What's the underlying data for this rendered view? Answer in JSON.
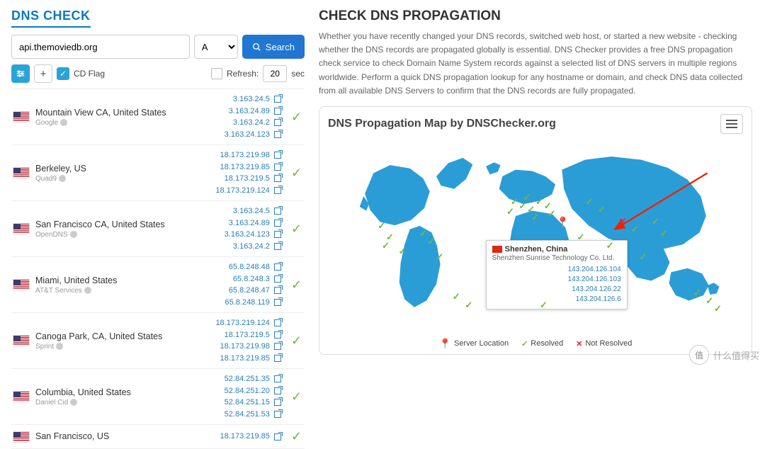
{
  "colors": {
    "accent": "#2176d2",
    "link": "#2a7fb8",
    "ok": "#6fb936",
    "no": "#e23",
    "map": "#2a9dd6"
  },
  "left": {
    "title": "DNS CHECK",
    "host_value": "api.themoviedb.org",
    "record_type": "A",
    "search_label": "Search",
    "cd_flag_label": "CD Flag",
    "refresh_label": "Refresh:",
    "refresh_value": "20",
    "refresh_unit": "sec",
    "servers": [
      {
        "loc": "Mountain View CA, United States",
        "prov": "Google",
        "ips": [
          "3.163.24.5",
          "3.163.24.89",
          "3.163.24.2",
          "3.163.24.123"
        ],
        "ok": true
      },
      {
        "loc": "Berkeley, US",
        "prov": "Quad9",
        "ips": [
          "18.173.219.98",
          "18.173.219.85",
          "18.173.219.5",
          "18.173.219.124"
        ],
        "ok": true
      },
      {
        "loc": "San Francisco CA, United States",
        "prov": "OpenDNS",
        "ips": [
          "3.163.24.5",
          "3.163.24.89",
          "3.163.24.123",
          "3.163.24.2"
        ],
        "ok": true
      },
      {
        "loc": "Miami, United States",
        "prov": "AT&T Services",
        "ips": [
          "65.8.248.48",
          "65.8.248.3",
          "65.8.248.47",
          "65.8.248.119"
        ],
        "ok": true
      },
      {
        "loc": "Canoga Park, CA, United States",
        "prov": "Sprint",
        "ips": [
          "18.173.219.124",
          "18.173.219.5",
          "18.173.219.98",
          "18.173.219.85"
        ],
        "ok": true
      },
      {
        "loc": "Columbia, United States",
        "prov": "Daniel Cid",
        "ips": [
          "52.84.251.35",
          "52.84.251.20",
          "52.84.251.15",
          "52.84.251.53"
        ],
        "ok": true
      },
      {
        "loc": "San Francisco, US",
        "prov": "",
        "ips": [
          "18.173.219.85"
        ],
        "ok": true
      }
    ]
  },
  "right": {
    "title": "CHECK DNS PROPAGATION",
    "desc": "Whether you have recently changed your DNS records, switched web host, or started a new website - checking whether the DNS records are propagated globally is essential. DNS Checker provides a free DNS propagation check service to check Domain Name System records against a selected list of DNS servers in multiple regions worldwide. Perform a quick DNS propagation lookup for any hostname or domain, and check DNS data collected from all available DNS Servers to confirm that the DNS records are fully propagated.",
    "map_title": "DNS Propagation Map by DNSChecker.org",
    "legend": {
      "server": "Server Location",
      "resolved": "Resolved",
      "not_resolved": "Not Resolved"
    },
    "tooltip": {
      "loc": "Shenzhen, China",
      "prov": "Shenzhen Sunrise Technology Co. Ltd.",
      "ips": [
        "143.204.126.104",
        "143.204.126.103",
        "143.204.126.22",
        "143.204.126.6"
      ]
    },
    "markers": [
      {
        "x": 12,
        "y": 42,
        "t": "ok"
      },
      {
        "x": 14,
        "y": 48,
        "t": "ok"
      },
      {
        "x": 13,
        "y": 52,
        "t": "ok"
      },
      {
        "x": 17,
        "y": 55,
        "t": "ok"
      },
      {
        "x": 22,
        "y": 46,
        "t": "ok"
      },
      {
        "x": 24,
        "y": 50,
        "t": "ok"
      },
      {
        "x": 26,
        "y": 58,
        "t": "ok"
      },
      {
        "x": 30,
        "y": 78,
        "t": "ok"
      },
      {
        "x": 33,
        "y": 82,
        "t": "ok"
      },
      {
        "x": 44,
        "y": 30,
        "t": "ok"
      },
      {
        "x": 46,
        "y": 32,
        "t": "ok"
      },
      {
        "x": 47,
        "y": 28,
        "t": "ok"
      },
      {
        "x": 43,
        "y": 35,
        "t": "ok"
      },
      {
        "x": 48,
        "y": 34,
        "t": "ok"
      },
      {
        "x": 50,
        "y": 30,
        "t": "ok"
      },
      {
        "x": 52,
        "y": 32,
        "t": "ok"
      },
      {
        "x": 49,
        "y": 38,
        "t": "ok"
      },
      {
        "x": 53,
        "y": 36,
        "t": "ok"
      },
      {
        "x": 55,
        "y": 40,
        "t": "pin"
      },
      {
        "x": 51,
        "y": 82,
        "t": "ok"
      },
      {
        "x": 62,
        "y": 30,
        "t": "ok"
      },
      {
        "x": 65,
        "y": 34,
        "t": "ok"
      },
      {
        "x": 60,
        "y": 48,
        "t": "ok"
      },
      {
        "x": 67,
        "y": 52,
        "t": "ok"
      },
      {
        "x": 70,
        "y": 40,
        "t": "no"
      },
      {
        "x": 73,
        "y": 44,
        "t": "ok"
      },
      {
        "x": 78,
        "y": 40,
        "t": "ok"
      },
      {
        "x": 80,
        "y": 46,
        "t": "ok"
      },
      {
        "x": 75,
        "y": 58,
        "t": "ok"
      },
      {
        "x": 88,
        "y": 76,
        "t": "ok"
      },
      {
        "x": 91,
        "y": 80,
        "t": "ok"
      },
      {
        "x": 93,
        "y": 84,
        "t": "ok"
      }
    ]
  },
  "watermark": {
    "circle": "值",
    "text": "什么值得买"
  }
}
